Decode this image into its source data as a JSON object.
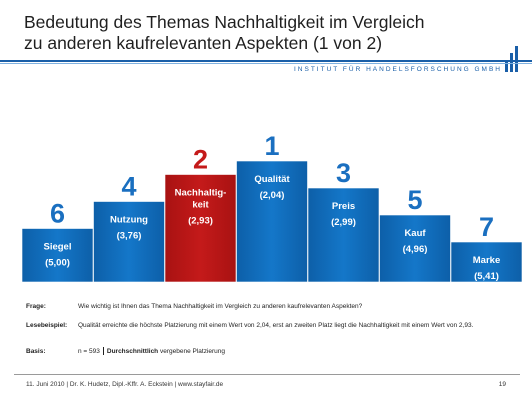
{
  "header": {
    "title_line1": "Bedeutung des Themas Nachhaltigkeit im Vergleich",
    "title_line2": "zu anderen kaufrelevanten Aspekten (1 von 2)",
    "institute": "INSTITUT FÜR HANDELSFORSCHUNG GMBH"
  },
  "colors": {
    "accent_blue": "#1a5fa8",
    "bar_blue": "#1477c9",
    "bar_highlight_red": "#c41a1a",
    "rank_blue": "#1a6fc0",
    "rank_red": "#c41a1a"
  },
  "chart_data": {
    "type": "bar",
    "categories": [
      "Siegel",
      "Nutzung",
      "Nachhaltig-keit",
      "Qualität",
      "Preis",
      "Kauf",
      "Marke"
    ],
    "label_lines": [
      [
        "Siegel"
      ],
      [
        "Nutzung"
      ],
      [
        "Nachhaltig-",
        "keit"
      ],
      [
        "Qualität"
      ],
      [
        "Preis"
      ],
      [
        "Kauf"
      ],
      [
        "Marke"
      ]
    ],
    "values": [
      5.0,
      3.76,
      2.93,
      2.04,
      2.99,
      4.96,
      5.41
    ],
    "value_labels": [
      "(5,00)",
      "(3,76)",
      "(2,93)",
      "(2,04)",
      "(2,99)",
      "(4,96)",
      "(5,41)"
    ],
    "ranks": [
      "6",
      "4",
      "2",
      "1",
      "3",
      "5",
      "7"
    ],
    "highlight_index": 2
  },
  "info": {
    "frage_label": "Frage:",
    "frage_text": "Wie wichtig ist Ihnen das Thema Nachhaltigkeit im Vergleich zu anderen kaufrelevanten Aspekten?",
    "lesebeispiel_label": "Lesebeispiel:",
    "lesebeispiel_text": "Qualität erreichte die höchste Platzierung mit einem Wert von 2,04, erst an zweiten Platz liegt die Nachhaltigkeit mit einem Wert von 2,93.",
    "basis_label": "Basis:",
    "basis_n": "n = 593",
    "basis_bold": "Durchschnittlich",
    "basis_rest": " vergebene Platzierung"
  },
  "footer": {
    "text": "11. Juni 2010 | Dr. K. Hudetz, Dipl.-Kffr. A. Eckstein | www.stayfair.de",
    "page": "19"
  }
}
